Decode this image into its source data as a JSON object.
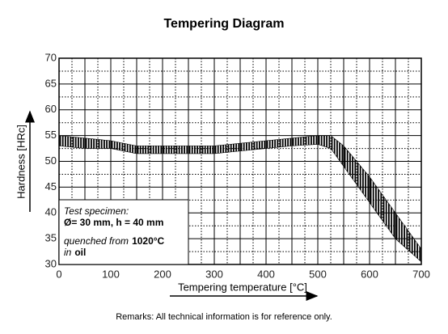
{
  "chart_data": {
    "type": "band",
    "title": "Tempering Diagram",
    "x_label": "Tempering temperature [°C]",
    "y_label": "Hardness [HRc]",
    "x": [
      0,
      50,
      100,
      150,
      200,
      250,
      300,
      350,
      400,
      450,
      500,
      525,
      550,
      600,
      650,
      700
    ],
    "series": [
      {
        "color": "#000000",
        "values": [
          55,
          54.5,
          54,
          53,
          53,
          53,
          53,
          53.5,
          54,
          54.5,
          55,
          55,
          53,
          47,
          40,
          33
        ]
      },
      {
        "color": "#000000",
        "values": [
          53,
          52.5,
          52.5,
          51.5,
          51.5,
          51.5,
          51.5,
          52,
          52.5,
          53,
          53.3,
          52.5,
          49,
          42,
          35,
          30.5
        ]
      }
    ],
    "xlim": [
      0,
      700
    ],
    "ylim": [
      30,
      70
    ],
    "xticks": [
      0,
      100,
      200,
      300,
      400,
      500,
      600,
      700
    ],
    "yticks": [
      30,
      35,
      40,
      45,
      50,
      55,
      60,
      65,
      70
    ],
    "grid": true,
    "annotation": {
      "heading": "Test specimen:",
      "dimensions": "Ø= 30 mm, h = 40 mm",
      "process": "quenched from",
      "temperature": "1020°C",
      "medium_prefix": "in",
      "medium": "oil"
    },
    "remarks": "Remarks: All technical information is for reference only."
  }
}
